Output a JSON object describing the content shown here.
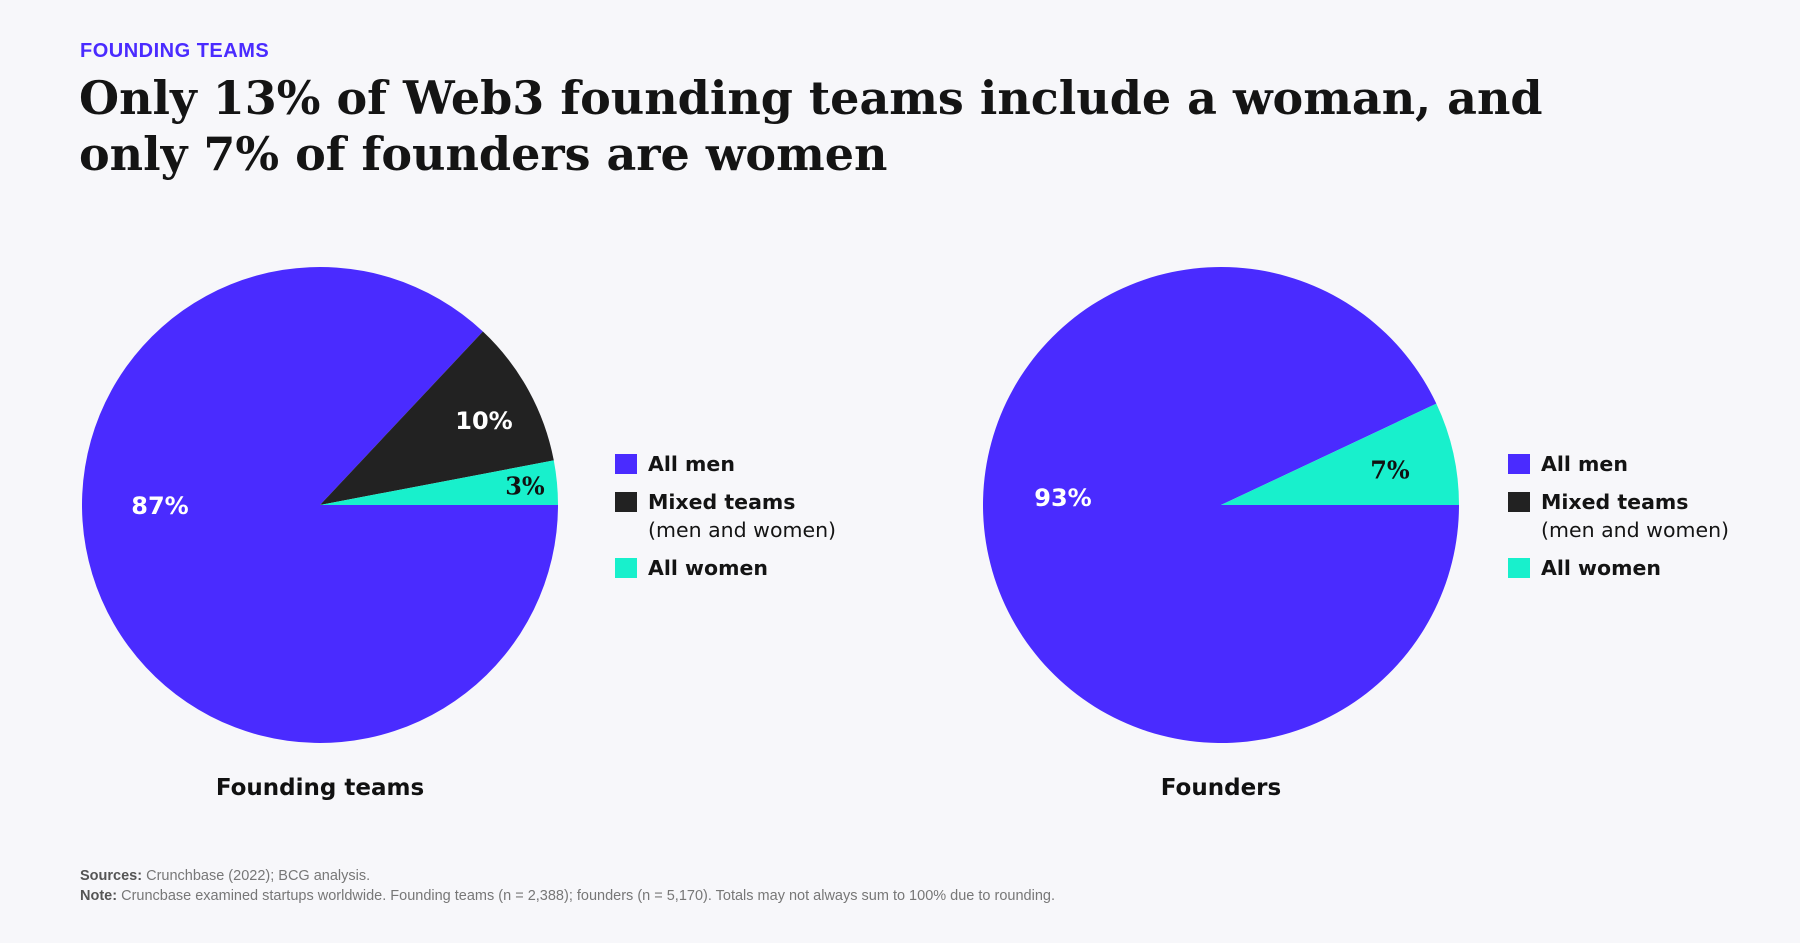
{
  "header": {
    "eyebrow": "FOUNDING TEAMS",
    "title": "Only 13% of Web3 founding teams include a woman, and only 7% of founders are women"
  },
  "colors": {
    "all_men": "#4a2bff",
    "mixed": "#222222",
    "all_women": "#18f0cc",
    "eyebrow": "#4a2bff"
  },
  "chart_data": [
    {
      "type": "pie",
      "title": "Founding teams",
      "slices": [
        {
          "name": "All men",
          "value": 87,
          "label": "87%"
        },
        {
          "name": "Mixed teams (men and women)",
          "value": 10,
          "label": "10%"
        },
        {
          "name": "All women",
          "value": 3,
          "label": "3%"
        }
      ],
      "legend": [
        {
          "name": "All men",
          "sub": ""
        },
        {
          "name": "Mixed teams",
          "sub": "(men and women)"
        },
        {
          "name": "All women",
          "sub": ""
        }
      ]
    },
    {
      "type": "pie",
      "title": "Founders",
      "slices": [
        {
          "name": "All men",
          "value": 93,
          "label": "93%"
        },
        {
          "name": "All women",
          "value": 7,
          "label": "7%"
        }
      ],
      "legend": [
        {
          "name": "All men",
          "sub": ""
        },
        {
          "name": "Mixed teams",
          "sub": "(men and women)"
        },
        {
          "name": "All women",
          "sub": ""
        }
      ]
    }
  ],
  "footnotes": {
    "sources_label": "Sources:",
    "sources_text": " Crunchbase (2022); BCG analysis.",
    "note_label": "Note:",
    "note_text": " Cruncbase examined startups worldwide. Founding teams (n = 2,388); founders (n = 5,170). Totals may not always sum to 100% due to rounding."
  }
}
